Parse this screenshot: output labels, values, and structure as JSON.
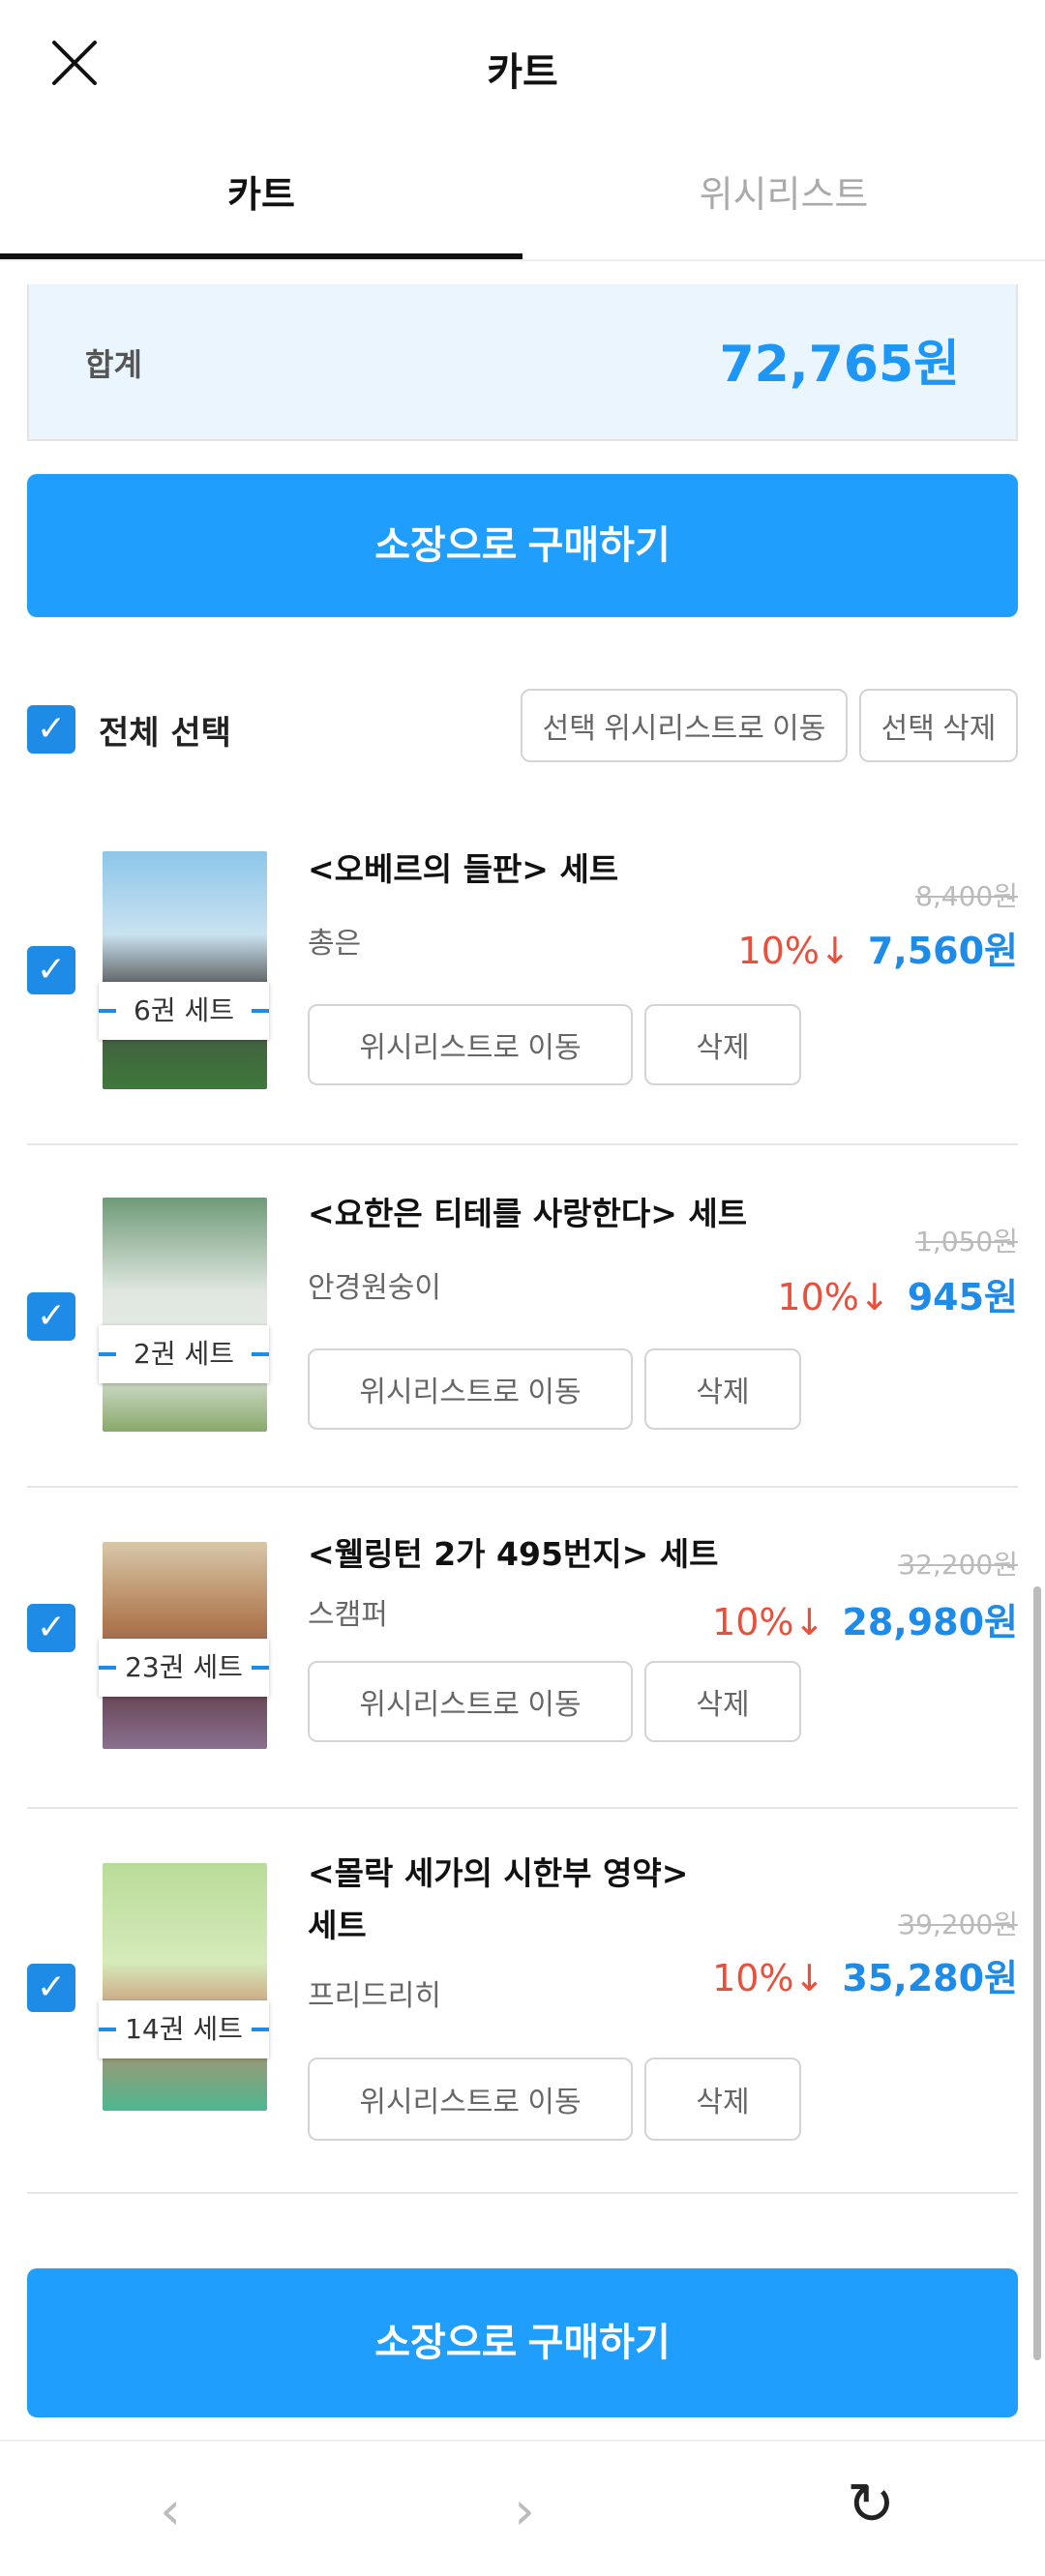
{
  "header": {
    "title": "카트",
    "close_icon": "close-icon"
  },
  "tabs": [
    {
      "label": "카트",
      "active": true
    },
    {
      "label": "위시리스트",
      "active": false
    }
  ],
  "summary": {
    "label": "합계",
    "total": "72,765원"
  },
  "buy_button": "소장으로 구매하기",
  "select_all": {
    "label": "전체 선택",
    "checked": true
  },
  "bulk_actions": {
    "move_to_wishlist": "선택 위시리스트로 이동",
    "delete": "선택 삭제"
  },
  "items": [
    {
      "title": "<오베르의 들판> 세트",
      "author": "총은",
      "set_label": "6권 세트",
      "original_price": "8,400원",
      "discount": "10%↓",
      "sale_price": "7,560원",
      "checked": true,
      "move_label": "위시리스트로 이동",
      "delete_label": "삭제"
    },
    {
      "title": "<요한은 티테를 사랑한다> 세트",
      "author": "안경원숭이",
      "set_label": "2권 세트",
      "original_price": "1,050원",
      "discount": "10%↓",
      "sale_price": "945원",
      "checked": true,
      "move_label": "위시리스트로 이동",
      "delete_label": "삭제"
    },
    {
      "title": "<웰링턴 2가 495번지> 세트",
      "author": "스캠퍼",
      "set_label": "23권 세트",
      "original_price": "32,200원",
      "discount": "10%↓",
      "sale_price": "28,980원",
      "checked": true,
      "move_label": "위시리스트로 이동",
      "delete_label": "삭제"
    },
    {
      "title": "<몰락 세가의 시한부 영약> 세트",
      "author": "프리드리히",
      "set_label": "14권 세트",
      "original_price": "39,200원",
      "discount": "10%↓",
      "sale_price": "35,280원",
      "checked": true,
      "move_label": "위시리스트로 이동",
      "delete_label": "삭제"
    }
  ],
  "bottom_nav": {
    "back": "‹",
    "forward": "›",
    "reload": "↻"
  },
  "colors": {
    "accent": "#1f9efd",
    "discount": "#e8503c",
    "price": "#1e8ce6",
    "summary_bg": "#ebf5fe"
  }
}
